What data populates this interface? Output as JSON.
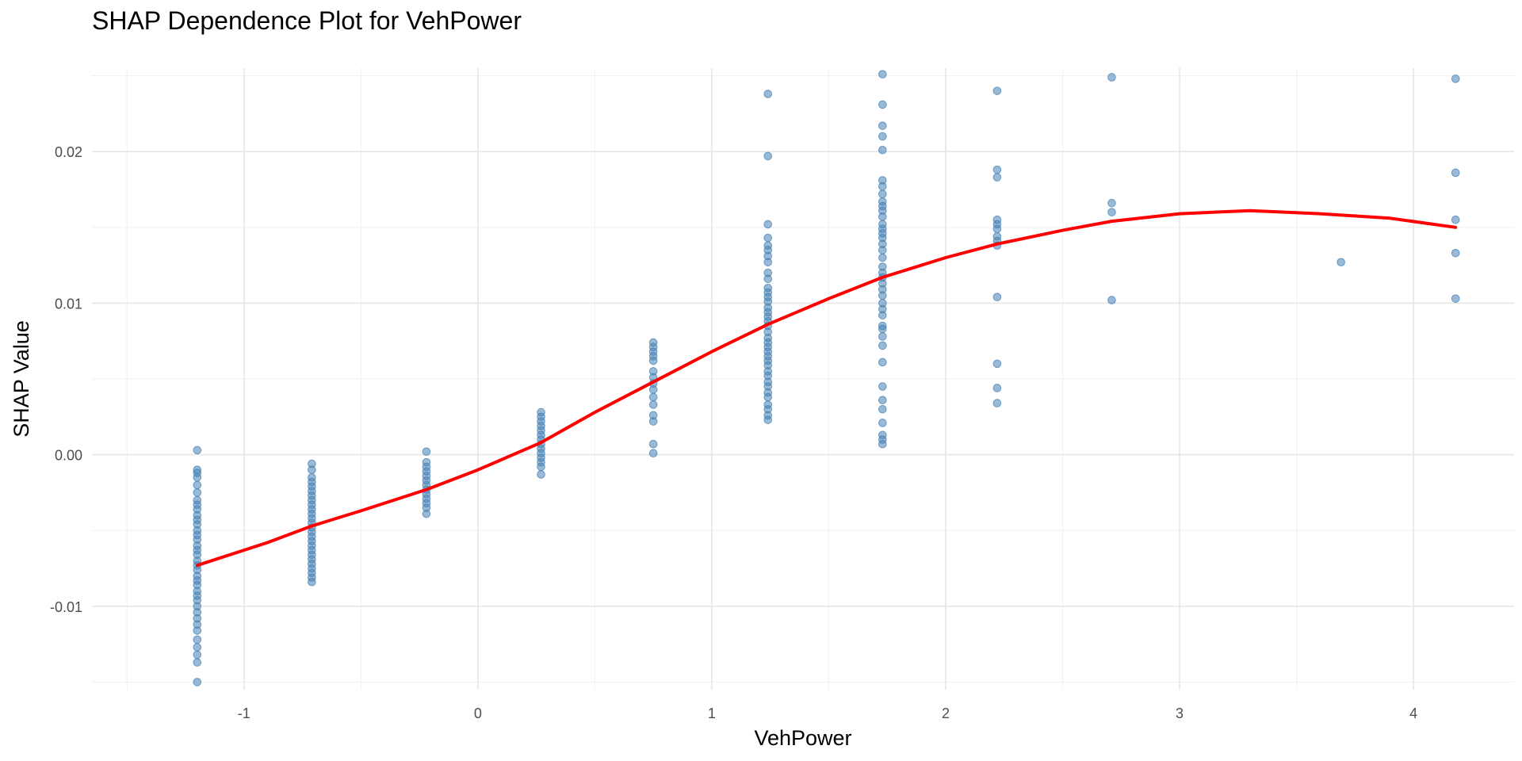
{
  "chart_data": {
    "type": "scatter",
    "title": "SHAP Dependence Plot for VehPower",
    "xlabel": "VehPower",
    "ylabel": "SHAP Value",
    "xlim": [
      -1.65,
      4.43
    ],
    "ylim": [
      -0.0155,
      0.0255
    ],
    "x_ticks": [
      -1,
      0,
      1,
      2,
      3,
      4
    ],
    "x_tick_labels": [
      "-1",
      "0",
      "1",
      "2",
      "3",
      "4"
    ],
    "y_ticks": [
      -0.01,
      0.0,
      0.01,
      0.02
    ],
    "y_tick_labels": [
      "-0.01",
      "0.00",
      "0.01",
      "0.02"
    ],
    "grid": true,
    "point_color": "#4682B4",
    "trend_color": "#FF0000",
    "columns": [
      {
        "x": -1.2,
        "y": [
          0.0003,
          -0.001,
          -0.0012,
          -0.0015,
          -0.002,
          -0.0025,
          -0.003,
          -0.0033,
          -0.0036,
          -0.004,
          -0.0043,
          -0.0046,
          -0.005,
          -0.0053,
          -0.0056,
          -0.006,
          -0.0063,
          -0.0066,
          -0.007,
          -0.0073,
          -0.0076,
          -0.008,
          -0.0083,
          -0.0086,
          -0.009,
          -0.0093,
          -0.0096,
          -0.01,
          -0.0104,
          -0.0108,
          -0.0112,
          -0.0116,
          -0.0122,
          -0.0127,
          -0.0132,
          -0.0137,
          -0.015
        ]
      },
      {
        "x": -0.71,
        "y": [
          -0.0006,
          -0.001,
          -0.0015,
          -0.0018,
          -0.0021,
          -0.0024,
          -0.0027,
          -0.003,
          -0.0033,
          -0.0036,
          -0.0039,
          -0.0042,
          -0.0045,
          -0.0048,
          -0.0051,
          -0.0054,
          -0.0057,
          -0.006,
          -0.0063,
          -0.0066,
          -0.0069,
          -0.0072,
          -0.0075,
          -0.0078,
          -0.0081,
          -0.0084
        ]
      },
      {
        "x": -0.22,
        "y": [
          0.0002,
          -0.0005,
          -0.0008,
          -0.0011,
          -0.0014,
          -0.0017,
          -0.002,
          -0.0023,
          -0.0026,
          -0.0029,
          -0.0032,
          -0.0035,
          -0.0039
        ]
      },
      {
        "x": 0.27,
        "y": [
          0.0028,
          0.0025,
          0.0022,
          0.0019,
          0.0016,
          0.0013,
          0.001,
          0.0007,
          0.0004,
          0.0001,
          -0.0002,
          -0.0005,
          -0.0008,
          -0.0013
        ]
      },
      {
        "x": 0.75,
        "y": [
          0.0074,
          0.0071,
          0.0068,
          0.0065,
          0.0062,
          0.0055,
          0.0051,
          0.0047,
          0.0043,
          0.0038,
          0.0033,
          0.0026,
          0.0022,
          0.0007,
          0.0001
        ]
      },
      {
        "x": 1.24,
        "y": [
          0.0238,
          0.0197,
          0.0152,
          0.0143,
          0.0138,
          0.0135,
          0.0131,
          0.0127,
          0.012,
          0.0116,
          0.011,
          0.0107,
          0.0104,
          0.0101,
          0.0097,
          0.0094,
          0.0091,
          0.0088,
          0.0085,
          0.0081,
          0.0077,
          0.0074,
          0.0071,
          0.0068,
          0.0065,
          0.0062,
          0.0059,
          0.0055,
          0.0052,
          0.0048,
          0.0045,
          0.0041,
          0.0038,
          0.0033,
          0.003,
          0.0026,
          0.0023
        ]
      },
      {
        "x": 1.73,
        "y": [
          0.0251,
          0.0231,
          0.0217,
          0.021,
          0.0201,
          0.0181,
          0.0177,
          0.0172,
          0.0167,
          0.0164,
          0.0161,
          0.0157,
          0.0152,
          0.0149,
          0.0146,
          0.0143,
          0.0139,
          0.0135,
          0.013,
          0.0124,
          0.012,
          0.0117,
          0.0113,
          0.0109,
          0.0105,
          0.01,
          0.0096,
          0.0092,
          0.0085,
          0.0083,
          0.0078,
          0.0072,
          0.0061,
          0.0045,
          0.0036,
          0.003,
          0.0021,
          0.0013,
          0.001,
          0.0007
        ]
      },
      {
        "x": 2.22,
        "y": [
          0.024,
          0.0188,
          0.0183,
          0.0155,
          0.0152,
          0.0149,
          0.0144,
          0.0141,
          0.0138,
          0.0104,
          0.006,
          0.0044,
          0.0034
        ]
      },
      {
        "x": 2.71,
        "y": [
          0.0249,
          0.0166,
          0.016,
          0.0102
        ]
      },
      {
        "x": 3.69,
        "y": [
          0.0127
        ]
      },
      {
        "x": 4.18,
        "y": [
          0.0248,
          0.0186,
          0.0155,
          0.0133,
          0.0103
        ]
      }
    ],
    "trend": {
      "x": [
        -1.2,
        -0.9,
        -0.71,
        -0.5,
        -0.22,
        0.0,
        0.27,
        0.5,
        0.75,
        1.0,
        1.24,
        1.5,
        1.73,
        2.0,
        2.22,
        2.5,
        2.71,
        3.0,
        3.3,
        3.6,
        3.9,
        4.18
      ],
      "y": [
        -0.0073,
        -0.0058,
        -0.0047,
        -0.0037,
        -0.0023,
        -0.001,
        0.0008,
        0.0028,
        0.0048,
        0.0068,
        0.0086,
        0.0103,
        0.0117,
        0.013,
        0.0139,
        0.0148,
        0.0154,
        0.0159,
        0.0161,
        0.0159,
        0.0156,
        0.015
      ]
    }
  }
}
